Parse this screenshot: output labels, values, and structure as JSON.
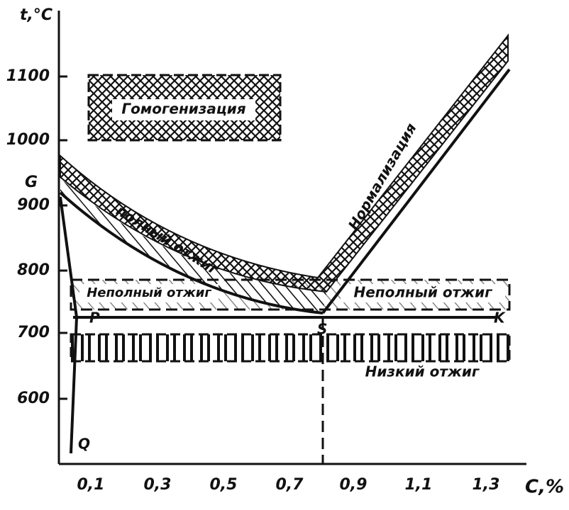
{
  "y_axis": {
    "label": "t,°C",
    "ticks": [
      "1100",
      "1000",
      "900",
      "800",
      "700",
      "600"
    ]
  },
  "x_axis": {
    "label": "C,%",
    "ticks": [
      "0,1",
      "0,3",
      "0,5",
      "0,7",
      "0,9",
      "1,1",
      "1,3"
    ]
  },
  "points": {
    "G": "G",
    "P": "P",
    "S": "S",
    "K": "K",
    "Q": "Q"
  },
  "regions": {
    "homogenization": "Гомогенизация",
    "normalization": "Нормализация",
    "full_annealing": "полный отжиг",
    "incomplete_annealing_left": "Неполный отжиг",
    "incomplete_annealing_right": "Неполный отжиг",
    "low_annealing": "Низкий отжиг"
  }
}
